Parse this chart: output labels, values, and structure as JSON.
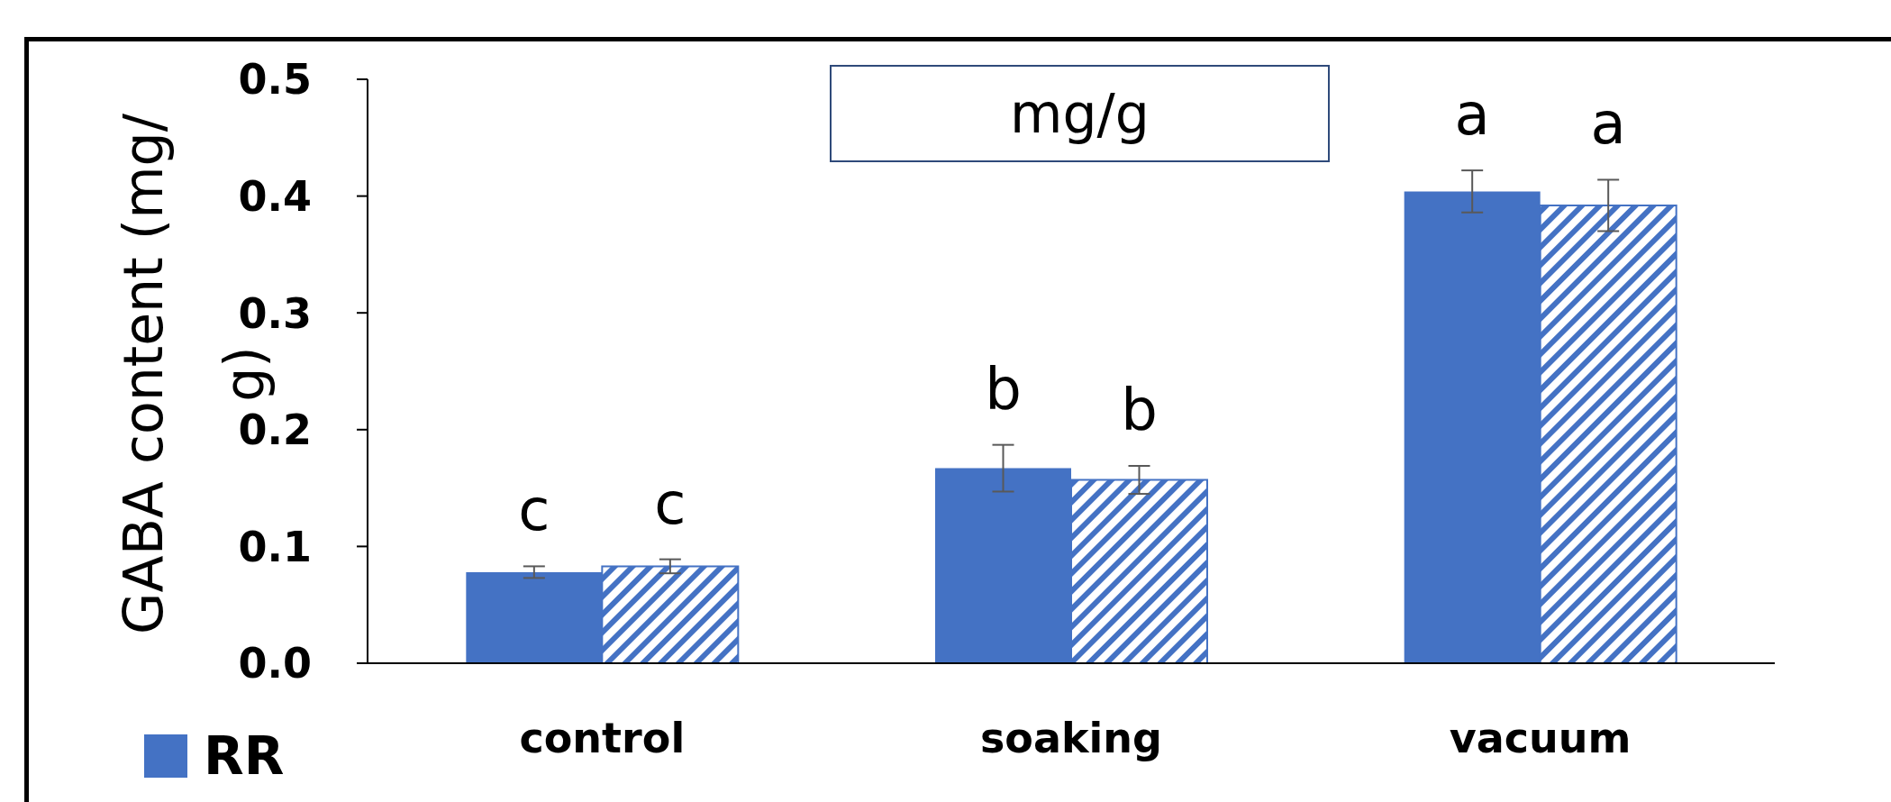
{
  "chart_data": {
    "type": "bar",
    "ylabel": "GABA content (mg/g)",
    "categories": [
      "control",
      "soaking",
      "vacuum"
    ],
    "series": [
      {
        "name": "RR",
        "color": "#4472c4",
        "values": [
          0.078,
          0.167,
          0.404
        ],
        "errors": [
          0.005,
          0.02,
          0.018
        ]
      },
      {
        "color": "#4472c4",
        "values": [
          0.083,
          0.157,
          0.392
        ],
        "errors": [
          0.006,
          0.012,
          0.022
        ]
      }
    ],
    "ylim": [
      0,
      0.5
    ],
    "yticks": [
      {
        "value": 0,
        "label": "0.0"
      },
      0.1,
      0.2,
      0.3,
      0.4,
      0.5
    ],
    "grid": false,
    "legend": "bottom left",
    "annotations": [
      "mg/g",
      "c",
      "c",
      "b",
      "b",
      "a",
      "a"
    ]
  }
}
